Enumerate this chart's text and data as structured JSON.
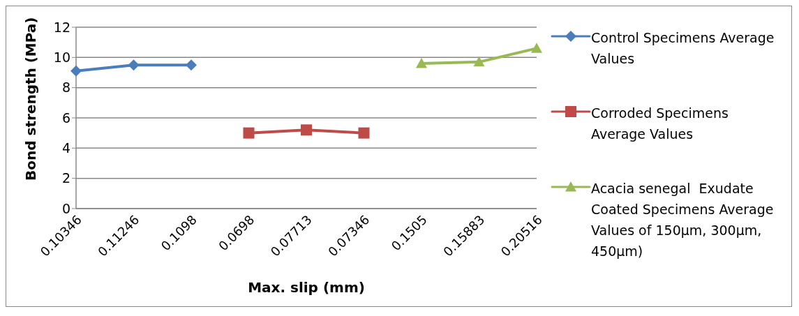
{
  "chart_data": {
    "type": "line",
    "xlabel": "Max. slip (mm)",
    "ylabel": "Bond strength (MPa)",
    "categories": [
      "0.10346",
      "0.11246",
      "0.1098",
      "0.0698",
      "0.07713",
      "0.07346",
      "0.1505",
      "0.15883",
      "0.20516"
    ],
    "series": [
      {
        "name": "Control Specimens Average Values",
        "color": "#4a7ebb",
        "marker": "diamond",
        "values": [
          9.1,
          9.5,
          9.5,
          null,
          null,
          null,
          null,
          null,
          null
        ]
      },
      {
        "name": "Corroded Specimens Average Values",
        "color": "#be4b48",
        "marker": "square",
        "values": [
          null,
          null,
          null,
          5.0,
          5.2,
          5.0,
          null,
          null,
          null
        ]
      },
      {
        "name": "Acacia senegal  Exudate Coated Specimens Average Values of 150µm, 300µm, 450µm)",
        "color": "#98b954",
        "marker": "triangle",
        "values": [
          null,
          null,
          null,
          null,
          null,
          null,
          9.6,
          9.7,
          10.6
        ]
      }
    ],
    "ylim": [
      0,
      12
    ],
    "yticks": [
      0,
      2,
      4,
      6,
      8,
      10,
      12
    ],
    "grid": "y",
    "legend": "right"
  }
}
